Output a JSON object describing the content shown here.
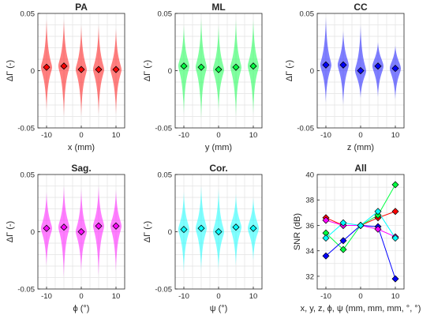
{
  "chart_data": [
    {
      "type": "violin",
      "title": "PA",
      "xlabel": "x (mm)",
      "ylabel": "ΔΓ (-)",
      "color": "#ff0000",
      "x_ticks": [
        "-10",
        "0",
        "10"
      ],
      "y_ticks": [
        "-0.05",
        "0",
        "0.05"
      ],
      "xlim": [
        -12.5,
        12.5
      ],
      "ylim": [
        -0.05,
        0.05
      ],
      "grid": true,
      "x": [
        -10,
        -5,
        0,
        5,
        10
      ],
      "medians": [
        0.003,
        0.004,
        0.001,
        0.001,
        0.001
      ],
      "ranges": [
        [
          -0.035,
          0.045
        ],
        [
          -0.04,
          0.045
        ],
        [
          -0.04,
          0.04
        ],
        [
          -0.038,
          0.04
        ],
        [
          -0.038,
          0.037
        ]
      ]
    },
    {
      "type": "violin",
      "title": "ML",
      "xlabel": "y (mm)",
      "ylabel": "ΔΓ (-)",
      "color": "#00ff40",
      "x_ticks": [
        "-10",
        "0",
        "10"
      ],
      "y_ticks": [
        "-0.05",
        "0",
        "0.05"
      ],
      "xlim": [
        -12.5,
        12.5
      ],
      "ylim": [
        -0.05,
        0.05
      ],
      "grid": true,
      "x": [
        -10,
        -5,
        0,
        5,
        10
      ],
      "medians": [
        0.004,
        0.003,
        0.001,
        0.003,
        0.004
      ],
      "ranges": [
        [
          -0.038,
          0.04
        ],
        [
          -0.042,
          0.046
        ],
        [
          -0.035,
          0.04
        ],
        [
          -0.04,
          0.045
        ],
        [
          -0.038,
          0.045
        ]
      ]
    },
    {
      "type": "violin",
      "title": "CC",
      "xlabel": "z (mm)",
      "ylabel": "ΔΓ (-)",
      "color": "#0000ff",
      "x_ticks": [
        "-10",
        "0",
        "10"
      ],
      "y_ticks": [
        "-0.05",
        "0",
        "0.05"
      ],
      "xlim": [
        -12.5,
        12.5
      ],
      "ylim": [
        -0.05,
        0.05
      ],
      "grid": true,
      "x": [
        -10,
        -5,
        0,
        5,
        10
      ],
      "medians": [
        0.005,
        0.005,
        0.0,
        0.004,
        0.002
      ],
      "ranges": [
        [
          -0.028,
          0.047
        ],
        [
          -0.03,
          0.035
        ],
        [
          -0.024,
          0.04
        ],
        [
          -0.023,
          0.025
        ],
        [
          -0.025,
          0.022
        ]
      ]
    },
    {
      "type": "violin",
      "title": "Sag.",
      "xlabel": "ϕ (°)",
      "ylabel": "ΔΓ (-)",
      "color": "#ff00ff",
      "x_ticks": [
        "-10",
        "0",
        "10"
      ],
      "y_ticks": [
        "-0.05",
        "0",
        "0.05"
      ],
      "xlim": [
        -12.5,
        12.5
      ],
      "ylim": [
        -0.05,
        0.05
      ],
      "grid": true,
      "x": [
        -10,
        -5,
        0,
        5,
        10
      ],
      "medians": [
        0.003,
        0.004,
        0.0,
        0.005,
        0.005
      ],
      "ranges": [
        [
          -0.03,
          0.035
        ],
        [
          -0.04,
          0.04
        ],
        [
          -0.035,
          0.038
        ],
        [
          -0.038,
          0.04
        ],
        [
          -0.035,
          0.037
        ]
      ]
    },
    {
      "type": "violin",
      "title": "Cor.",
      "xlabel": "ψ (°)",
      "ylabel": "ΔΓ (-)",
      "color": "#00ffff",
      "x_ticks": [
        "-10",
        "0",
        "10"
      ],
      "y_ticks": [
        "-0.05",
        "0",
        "0.05"
      ],
      "xlim": [
        -12.5,
        12.5
      ],
      "ylim": [
        -0.05,
        0.05
      ],
      "grid": true,
      "x": [
        -10,
        -5,
        0,
        5,
        10
      ],
      "medians": [
        0.002,
        0.003,
        0.0,
        0.004,
        0.003
      ],
      "ranges": [
        [
          -0.035,
          0.035
        ],
        [
          -0.035,
          0.04
        ],
        [
          -0.033,
          0.038
        ],
        [
          -0.03,
          0.033
        ],
        [
          -0.025,
          0.03
        ]
      ]
    },
    {
      "type": "line",
      "title": "All",
      "xlabel": "x, y, z, ϕ, ψ (mm, mm, mm, °, °)",
      "ylabel": "SNR (dB)",
      "x_ticks": [
        "-10",
        "0",
        "10"
      ],
      "y_ticks": [
        "32",
        "34",
        "36",
        "38",
        "40"
      ],
      "xlim": [
        -12.5,
        12.5
      ],
      "ylim": [
        31,
        40
      ],
      "grid": true,
      "x": [
        -10,
        -5,
        0,
        5,
        10
      ],
      "series": [
        {
          "color": "#ff0000",
          "values": [
            36.6,
            36.0,
            36.0,
            36.6,
            37.1
          ]
        },
        {
          "color": "#00ff40",
          "values": [
            35.4,
            34.1,
            36.0,
            36.8,
            39.2
          ]
        },
        {
          "color": "#0000ff",
          "values": [
            33.6,
            34.8,
            36.0,
            35.9,
            31.8
          ]
        },
        {
          "color": "#ff00ff",
          "values": [
            36.4,
            36.0,
            36.0,
            35.7,
            35.1
          ]
        },
        {
          "color": "#00ffff",
          "values": [
            35.0,
            36.2,
            36.0,
            37.1,
            35.0
          ]
        }
      ]
    }
  ]
}
